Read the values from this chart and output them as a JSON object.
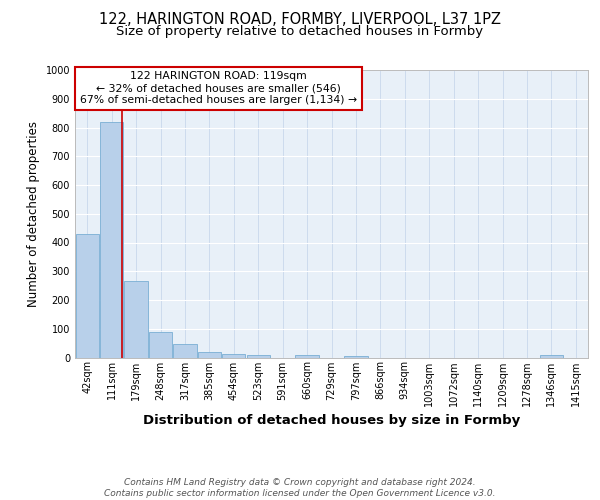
{
  "title1": "122, HARINGTON ROAD, FORMBY, LIVERPOOL, L37 1PZ",
  "title2": "Size of property relative to detached houses in Formby",
  "xlabel": "Distribution of detached houses by size in Formby",
  "ylabel": "Number of detached properties",
  "categories": [
    "42sqm",
    "111sqm",
    "179sqm",
    "248sqm",
    "317sqm",
    "385sqm",
    "454sqm",
    "523sqm",
    "591sqm",
    "660sqm",
    "729sqm",
    "797sqm",
    "866sqm",
    "934sqm",
    "1003sqm",
    "1072sqm",
    "1140sqm",
    "1209sqm",
    "1278sqm",
    "1346sqm",
    "1415sqm"
  ],
  "values": [
    430,
    820,
    265,
    90,
    48,
    20,
    12,
    9,
    0,
    9,
    0,
    5,
    0,
    0,
    0,
    0,
    0,
    0,
    0,
    8,
    0
  ],
  "bar_color": "#b8d0ea",
  "bar_edge_color": "#7aaed4",
  "vline_color": "#cc0000",
  "vline_pos": 1.42,
  "annotation_text": "122 HARINGTON ROAD: 119sqm\n← 32% of detached houses are smaller (546)\n67% of semi-detached houses are larger (1,134) →",
  "annotation_box_color": "#ffffff",
  "annotation_box_edge": "#cc0000",
  "footer": "Contains HM Land Registry data © Crown copyright and database right 2024.\nContains public sector information licensed under the Open Government Licence v3.0.",
  "ylim": [
    0,
    1000
  ],
  "background_color": "#e8f0f8",
  "grid_color": "#ffffff",
  "title_fontsize": 10.5,
  "subtitle_fontsize": 9.5,
  "ylabel_fontsize": 8.5,
  "xlabel_fontsize": 9.5,
  "tick_fontsize": 7,
  "footer_fontsize": 6.5
}
